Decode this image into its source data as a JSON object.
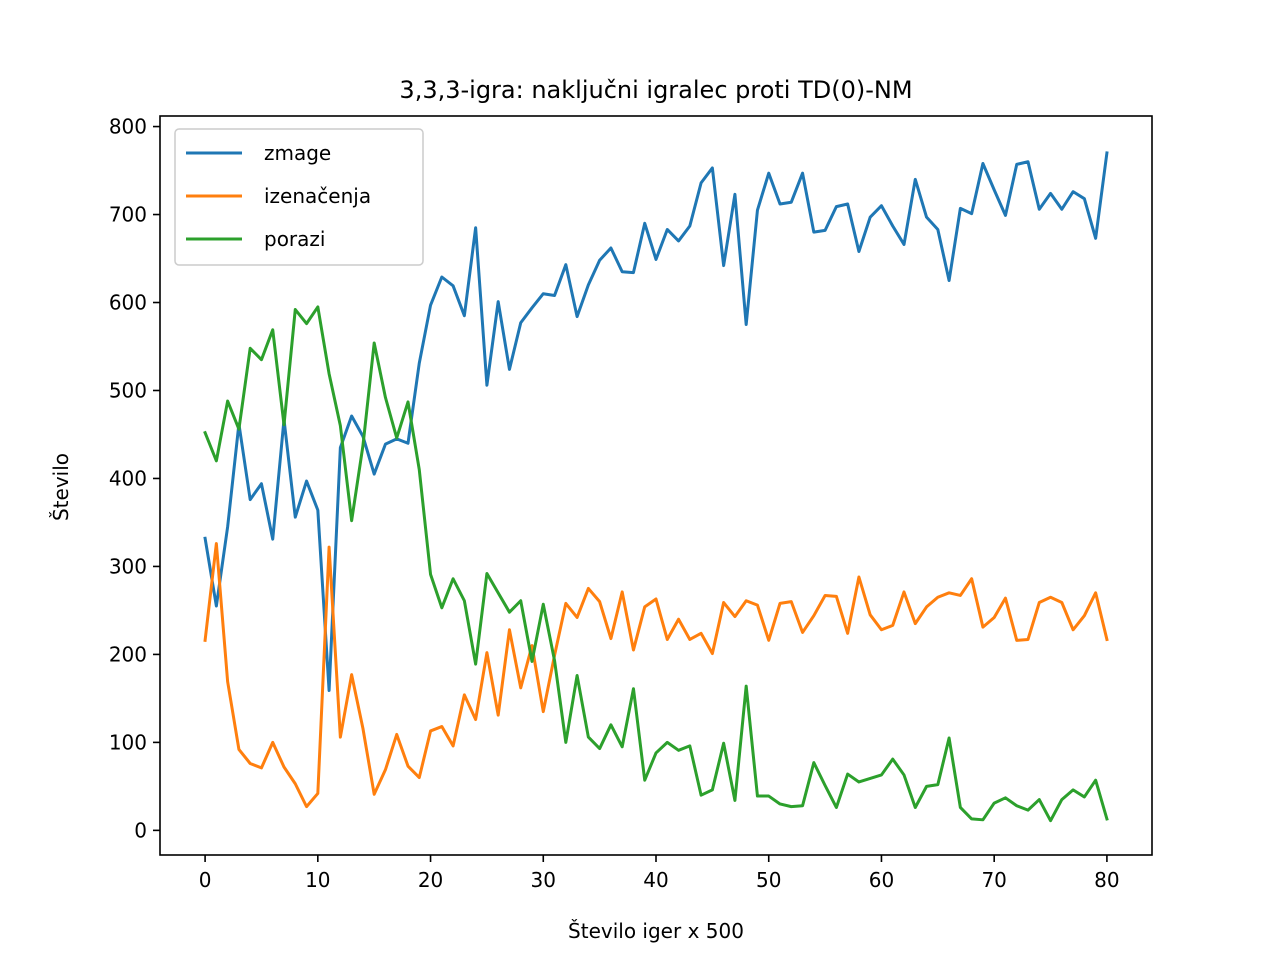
{
  "chart_data": {
    "type": "line",
    "title": "3,3,3-igra: naključni igralec proti TD(0)-NM",
    "xlabel": "Število iger x 500",
    "ylabel": "Število",
    "xlim": [
      -4,
      84
    ],
    "ylim": [
      -28,
      812
    ],
    "xticks": [
      0,
      10,
      20,
      30,
      40,
      50,
      60,
      70,
      80
    ],
    "yticks": [
      0,
      100,
      200,
      300,
      400,
      500,
      600,
      700,
      800
    ],
    "grid": false,
    "legend_position": "top-left",
    "x": [
      0,
      1,
      2,
      3,
      4,
      5,
      6,
      7,
      8,
      9,
      10,
      11,
      12,
      13,
      14,
      15,
      16,
      17,
      18,
      19,
      20,
      21,
      22,
      23,
      24,
      25,
      26,
      27,
      28,
      29,
      30,
      31,
      32,
      33,
      34,
      35,
      36,
      37,
      38,
      39,
      40,
      41,
      42,
      43,
      44,
      45,
      46,
      47,
      48,
      49,
      50,
      51,
      52,
      53,
      54,
      55,
      56,
      57,
      58,
      59,
      60,
      61,
      62,
      63,
      64,
      65,
      66,
      67,
      68,
      69,
      70,
      71,
      72,
      73,
      74,
      75,
      76,
      77,
      78,
      79,
      80
    ],
    "series": [
      {
        "name": "zmage",
        "color": "#1f77b4",
        "values": [
          332,
          255,
          345,
          462,
          376,
          394,
          331,
          467,
          356,
          397,
          364,
          159,
          435,
          471,
          448,
          405,
          439,
          445,
          440,
          531,
          597,
          629,
          619,
          585,
          685,
          506,
          601,
          524,
          577,
          594,
          610,
          608,
          643,
          584,
          620,
          648,
          662,
          635,
          634,
          690,
          649,
          683,
          670,
          687,
          736,
          753,
          642,
          723,
          575,
          705,
          747,
          712,
          714,
          747,
          680,
          682,
          709,
          712,
          658,
          697,
          710,
          687,
          666,
          740,
          697,
          683,
          625,
          707,
          701,
          758,
          728,
          699,
          757,
          760,
          706,
          724,
          706,
          726,
          718,
          673,
          770
        ]
      },
      {
        "name": "izenačenja",
        "color": "#ff7f0e",
        "values": [
          216,
          326,
          169,
          92,
          76,
          71,
          100,
          72,
          53,
          27,
          42,
          322,
          106,
          177,
          116,
          41,
          69,
          109,
          73,
          60,
          113,
          118,
          96,
          154,
          126,
          202,
          131,
          228,
          162,
          210,
          135,
          199,
          258,
          242,
          275,
          260,
          218,
          271,
          205,
          254,
          263,
          217,
          240,
          217,
          224,
          201,
          259,
          243,
          261,
          256,
          216,
          258,
          260,
          225,
          244,
          267,
          266,
          224,
          288,
          245,
          228,
          233,
          271,
          235,
          254,
          265,
          270,
          267,
          286,
          231,
          242,
          264,
          216,
          217,
          259,
          265,
          259,
          228,
          244,
          270,
          217
        ]
      },
      {
        "name": "porazi",
        "color": "#2ca02c",
        "values": [
          452,
          420,
          488,
          456,
          548,
          535,
          569,
          461,
          592,
          576,
          595,
          519,
          460,
          352,
          437,
          554,
          492,
          446,
          487,
          410,
          291,
          253,
          286,
          261,
          189,
          292,
          270,
          248,
          261,
          192,
          257,
          193,
          100,
          176,
          106,
          93,
          120,
          95,
          161,
          57,
          88,
          100,
          91,
          96,
          40,
          46,
          99,
          34,
          164,
          39,
          39,
          30,
          27,
          28,
          77,
          51,
          26,
          64,
          55,
          59,
          63,
          81,
          63,
          26,
          50,
          52,
          105,
          26,
          13,
          12,
          31,
          37,
          28,
          23,
          35,
          11,
          35,
          46,
          38,
          57,
          13
        ]
      }
    ]
  }
}
